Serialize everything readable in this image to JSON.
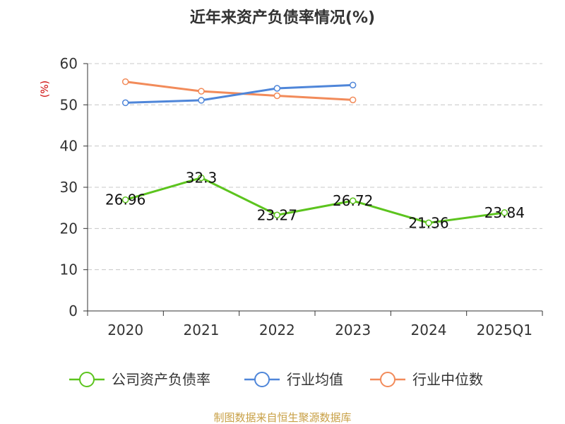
{
  "chart_data": {
    "type": "line",
    "title": "近年来资产负债率情况(%)",
    "ylabel": "(%)",
    "ylim": [
      0,
      60
    ],
    "yticks": [
      0,
      10,
      20,
      30,
      40,
      50,
      60
    ],
    "categories": [
      "2020",
      "2021",
      "2022",
      "2023",
      "2024",
      "2025Q1"
    ],
    "grid": true,
    "legend_position": "bottom",
    "series": [
      {
        "name": "公司资产负债率",
        "color": "#5cc41e",
        "values": [
          26.96,
          32.3,
          23.27,
          26.72,
          21.36,
          23.84
        ],
        "labels": [
          "26.96",
          "32.3",
          "23.27",
          "26.72",
          "21.36",
          "23.84"
        ]
      },
      {
        "name": "行业均值",
        "color": "#4f86d9",
        "values": [
          50.5,
          51.1,
          54.0,
          54.8,
          null,
          null
        ]
      },
      {
        "name": "行业中位数",
        "color": "#f28b5a",
        "values": [
          55.6,
          53.3,
          52.2,
          51.2,
          null,
          null
        ]
      }
    ]
  },
  "footer": "制图数据来自恒生聚源数据库"
}
